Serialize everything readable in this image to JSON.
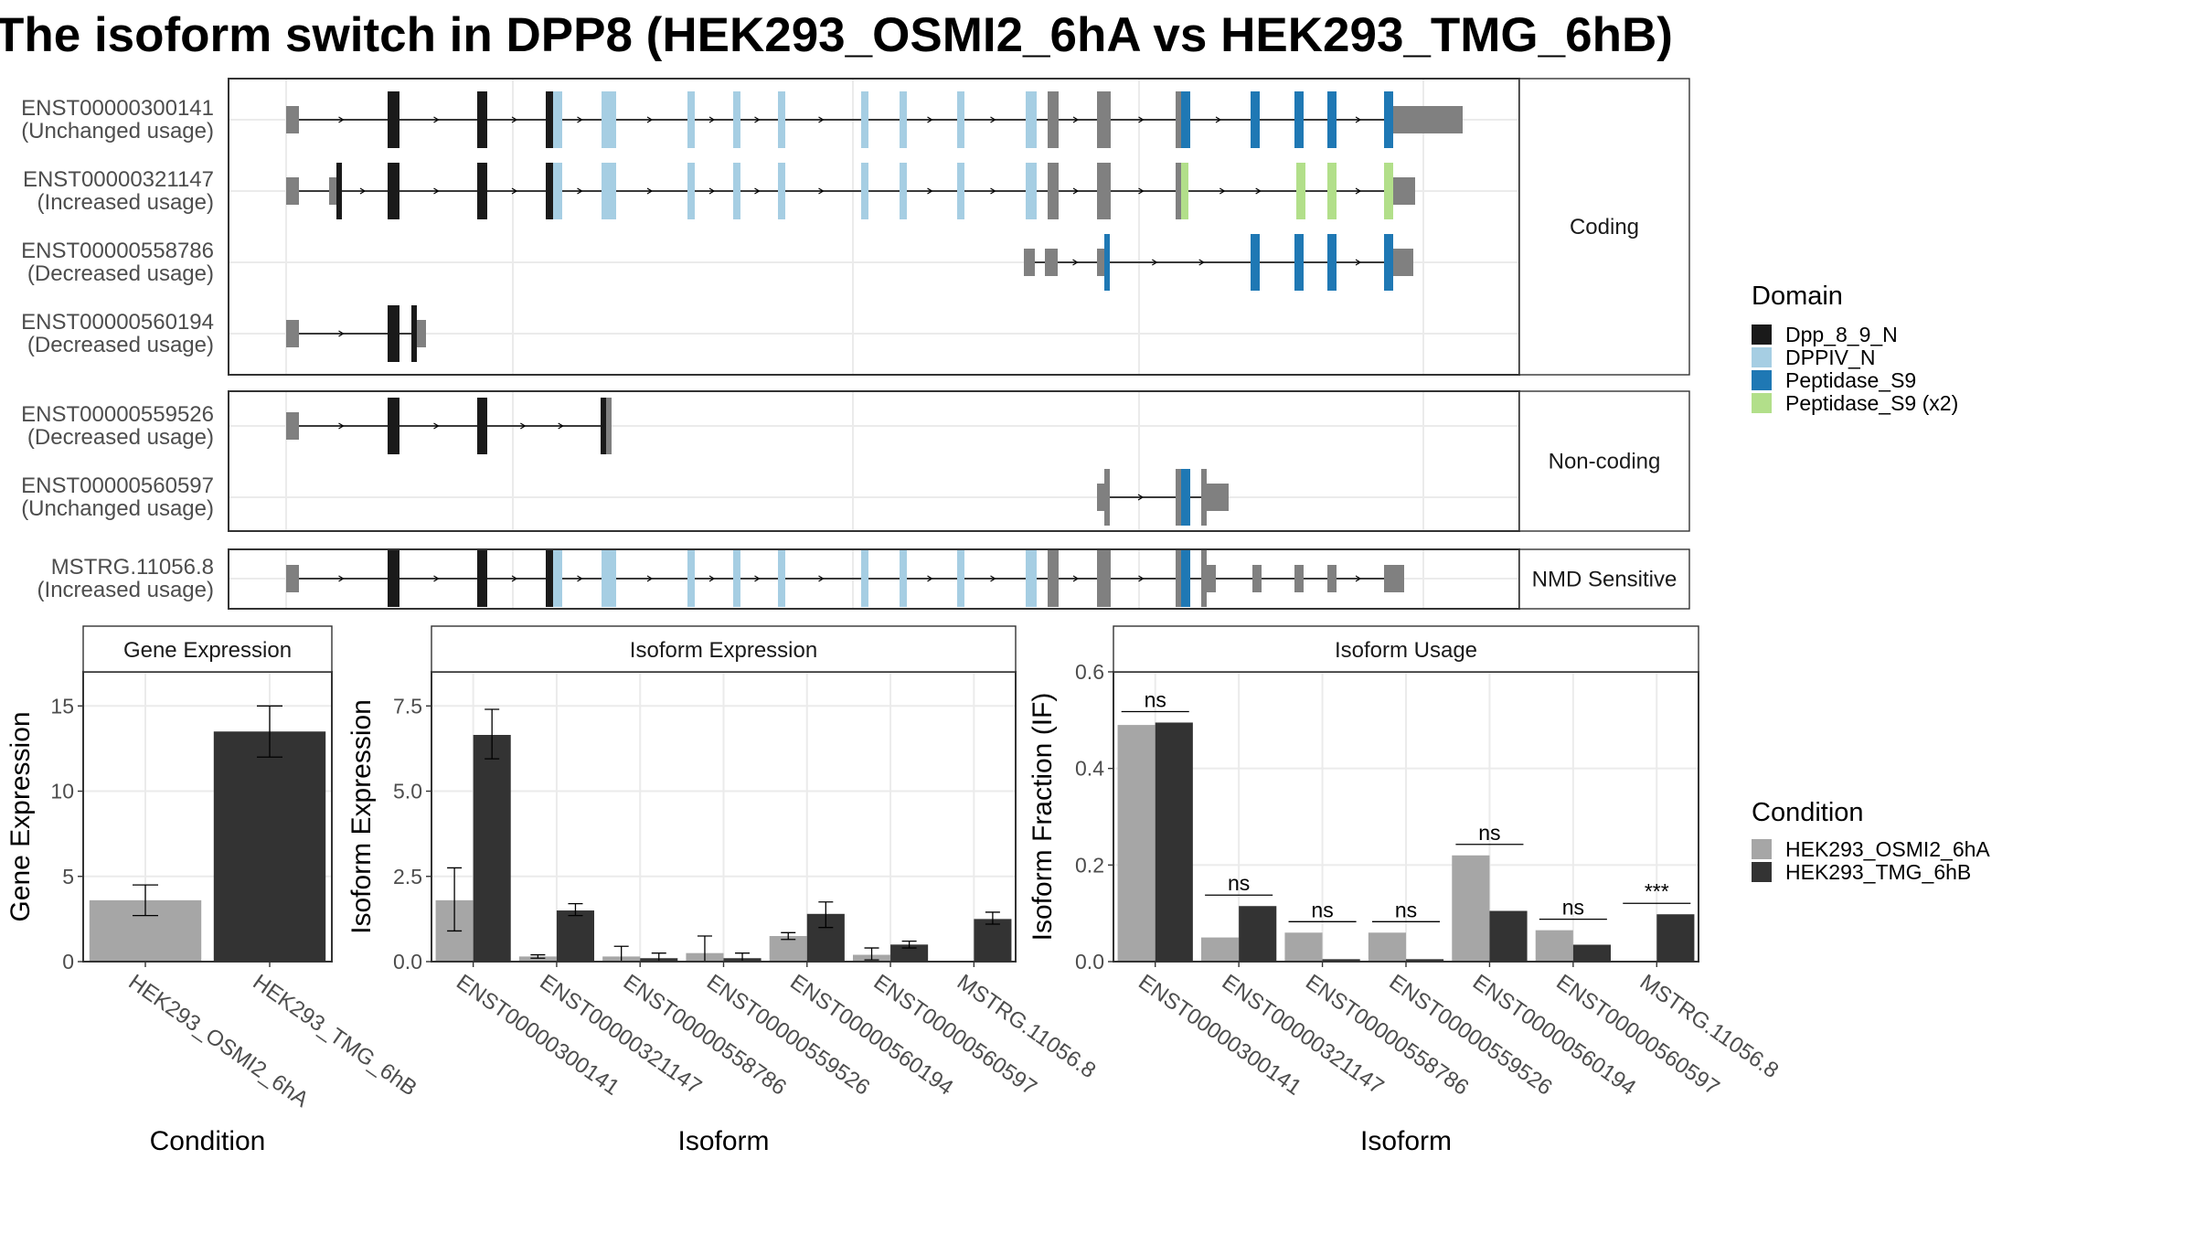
{
  "title": "The isoform switch in DPP8 (HEK293_OSMI2_6hA vs HEK293_TMG_6hB)",
  "colors": {
    "dpp_8_9_n": "#1a1a1a",
    "dppiv_n": "#a6cee3",
    "peptidase_s9": "#1f78b4",
    "peptidase_s9_x2": "#b2df8a",
    "noncoding_exon": "#808080",
    "condition_a": "#a6a6a6",
    "condition_b": "#333333",
    "grid": "#ebebeb"
  },
  "transcripts": {
    "panels": [
      {
        "strip": "Coding",
        "rows": [
          {
            "id": "ENST00000300141",
            "usage": "(Unchanged usage)"
          },
          {
            "id": "ENST00000321147",
            "usage": "(Increased usage)"
          },
          {
            "id": "ENST00000558786",
            "usage": "(Decreased usage)"
          },
          {
            "id": "ENST00000560194",
            "usage": "(Decreased usage)"
          }
        ]
      },
      {
        "strip": "Non-coding",
        "rows": [
          {
            "id": "ENST00000559526",
            "usage": "(Decreased usage)"
          },
          {
            "id": "ENST00000560597",
            "usage": "(Unchanged usage)"
          }
        ]
      },
      {
        "strip": "NMD Sensitive",
        "rows": [
          {
            "id": "MSTRG.11056.8",
            "usage": "(Increased usage)"
          }
        ]
      }
    ]
  },
  "legends": {
    "domain": {
      "title": "Domain",
      "items": [
        {
          "label": "Dpp_8_9_N",
          "color": "#1a1a1a"
        },
        {
          "label": "DPPIV_N",
          "color": "#a6cee3"
        },
        {
          "label": "Peptidase_S9",
          "color": "#1f78b4"
        },
        {
          "label": "Peptidase_S9 (x2)",
          "color": "#b2df8a"
        }
      ]
    },
    "condition": {
      "title": "Condition",
      "items": [
        {
          "label": "HEK293_OSMI2_6hA",
          "color": "#a6a6a6"
        },
        {
          "label": "HEK293_TMG_6hB",
          "color": "#333333"
        }
      ]
    }
  },
  "chart_data": [
    {
      "type": "bar",
      "title": "Gene Expression",
      "xlabel": "Condition",
      "ylabel": "Gene Expression",
      "ylim": [
        0,
        17
      ],
      "yticks": [
        0,
        5,
        10,
        15
      ],
      "categories": [
        "HEK293_OSMI2_6hA",
        "HEK293_TMG_6hB"
      ],
      "values": [
        3.6,
        13.5
      ],
      "error_low": [
        2.7,
        12.0
      ],
      "error_high": [
        4.5,
        15.0
      ]
    },
    {
      "type": "bar",
      "title": "Isoform Expression",
      "xlabel": "Isoform",
      "ylabel": "Isoform Expression",
      "ylim": [
        0,
        8.5
      ],
      "yticks": [
        0.0,
        2.5,
        5.0,
        7.5
      ],
      "ytick_labels": [
        "0.0",
        "2.5",
        "5.0",
        "7.5"
      ],
      "categories": [
        "ENST00000300141",
        "ENST00000321147",
        "ENST00000558786",
        "ENST00000559526",
        "ENST00000560194",
        "ENST00000560597",
        "MSTRG.11056.8"
      ],
      "series": [
        {
          "name": "HEK293_OSMI2_6hA",
          "values": [
            1.8,
            0.15,
            0.15,
            0.25,
            0.75,
            0.2,
            0.0
          ],
          "error_low": [
            0.9,
            0.1,
            0.0,
            0.0,
            0.65,
            0.05,
            0.0
          ],
          "error_high": [
            2.75,
            0.2,
            0.45,
            0.75,
            0.85,
            0.4,
            0.0
          ]
        },
        {
          "name": "HEK293_TMG_6hB",
          "values": [
            6.65,
            1.5,
            0.1,
            0.1,
            1.4,
            0.5,
            1.25
          ],
          "error_low": [
            5.95,
            1.35,
            0.0,
            0.0,
            1.0,
            0.4,
            1.1
          ],
          "error_high": [
            7.4,
            1.7,
            0.25,
            0.25,
            1.75,
            0.6,
            1.45
          ]
        }
      ]
    },
    {
      "type": "bar",
      "title": "Isoform Usage",
      "xlabel": "Isoform",
      "ylabel": "Isoform Fraction (IF)",
      "ylim": [
        0,
        0.6
      ],
      "yticks": [
        0.0,
        0.2,
        0.4,
        0.6
      ],
      "ytick_labels": [
        "0.0",
        "0.2",
        "0.4",
        "0.6"
      ],
      "categories": [
        "ENST00000300141",
        "ENST00000321147",
        "ENST00000558786",
        "ENST00000559526",
        "ENST00000560194",
        "ENST00000560597",
        "MSTRG.11056.8"
      ],
      "series": [
        {
          "name": "HEK293_OSMI2_6hA",
          "values": [
            0.49,
            0.05,
            0.06,
            0.06,
            0.22,
            0.065,
            0.0
          ]
        },
        {
          "name": "HEK293_TMG_6hB",
          "values": [
            0.495,
            0.115,
            0.005,
            0.005,
            0.105,
            0.035,
            0.098
          ]
        }
      ],
      "annotations": [
        "ns",
        "ns",
        "ns",
        "ns",
        "ns",
        "ns",
        "***"
      ]
    }
  ]
}
